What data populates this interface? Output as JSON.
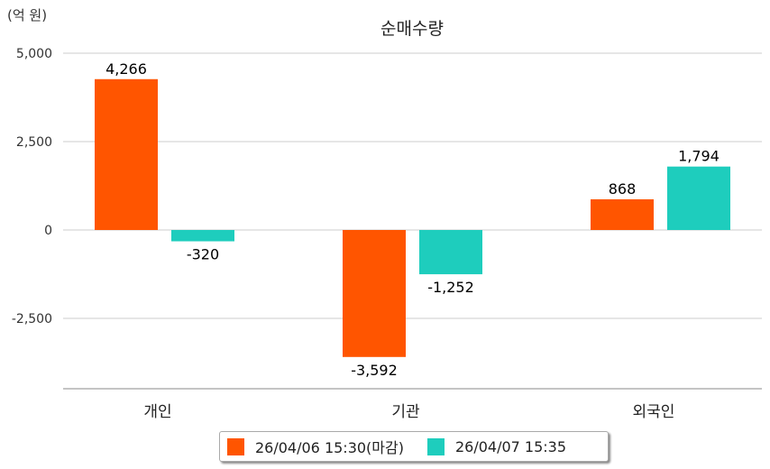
{
  "chart_data": {
    "type": "bar",
    "title": "순매수량",
    "unit_label": "(억 원)",
    "categories": [
      "개인",
      "기관",
      "외국인"
    ],
    "series": [
      {
        "name": "26/04/06 15:30(마감)",
        "color": "#ff5500",
        "values": [
          4266,
          -3592,
          868
        ],
        "labels": [
          "4,266",
          "-3,592",
          "868"
        ]
      },
      {
        "name": "26/04/07 15:35",
        "color": "#1ecdbd",
        "values": [
          -320,
          -1252,
          1794
        ],
        "labels": [
          "-320",
          "-1,252",
          "1,794"
        ]
      }
    ],
    "ylim": [
      -4500,
      5000
    ],
    "yticks": [
      5000,
      2500,
      0,
      -2500
    ],
    "ytick_labels": [
      "5,000",
      "2,500",
      "0",
      "-2,500"
    ],
    "grid": true,
    "legend": "bottom-center"
  }
}
